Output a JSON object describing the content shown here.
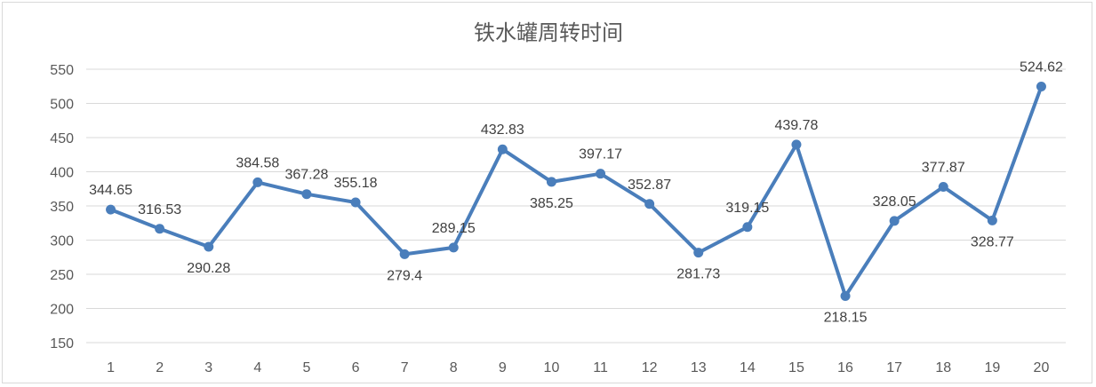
{
  "chart_data": {
    "type": "line",
    "title": "铁水罐周转时间",
    "xlabel": "",
    "ylabel": "",
    "categories": [
      "1",
      "2",
      "3",
      "4",
      "5",
      "6",
      "7",
      "8",
      "9",
      "10",
      "11",
      "12",
      "13",
      "14",
      "15",
      "16",
      "17",
      "18",
      "19",
      "20"
    ],
    "series": [
      {
        "color": "#4a7ebb",
        "values": [
          344.65,
          316.53,
          290.28,
          384.58,
          367.28,
          355.18,
          279.4,
          289.15,
          432.83,
          385.25,
          397.17,
          352.87,
          281.73,
          319.15,
          439.78,
          218.15,
          328.05,
          377.87,
          328.77,
          524.62
        ],
        "labels": [
          "344.65",
          "316.53",
          "290.28",
          "384.58",
          "367.28",
          "355.18",
          "279.4",
          "289.15",
          "432.83",
          "385.25",
          "397.17",
          "352.87",
          "281.73",
          "319.15",
          "439.78",
          "218.15",
          "328.05",
          "377.87",
          "328.77",
          "524.62"
        ]
      }
    ],
    "ylim": [
      150,
      550
    ],
    "yticks": [
      150,
      200,
      250,
      300,
      350,
      400,
      450,
      500,
      550
    ],
    "grid": true,
    "legend": "none"
  }
}
